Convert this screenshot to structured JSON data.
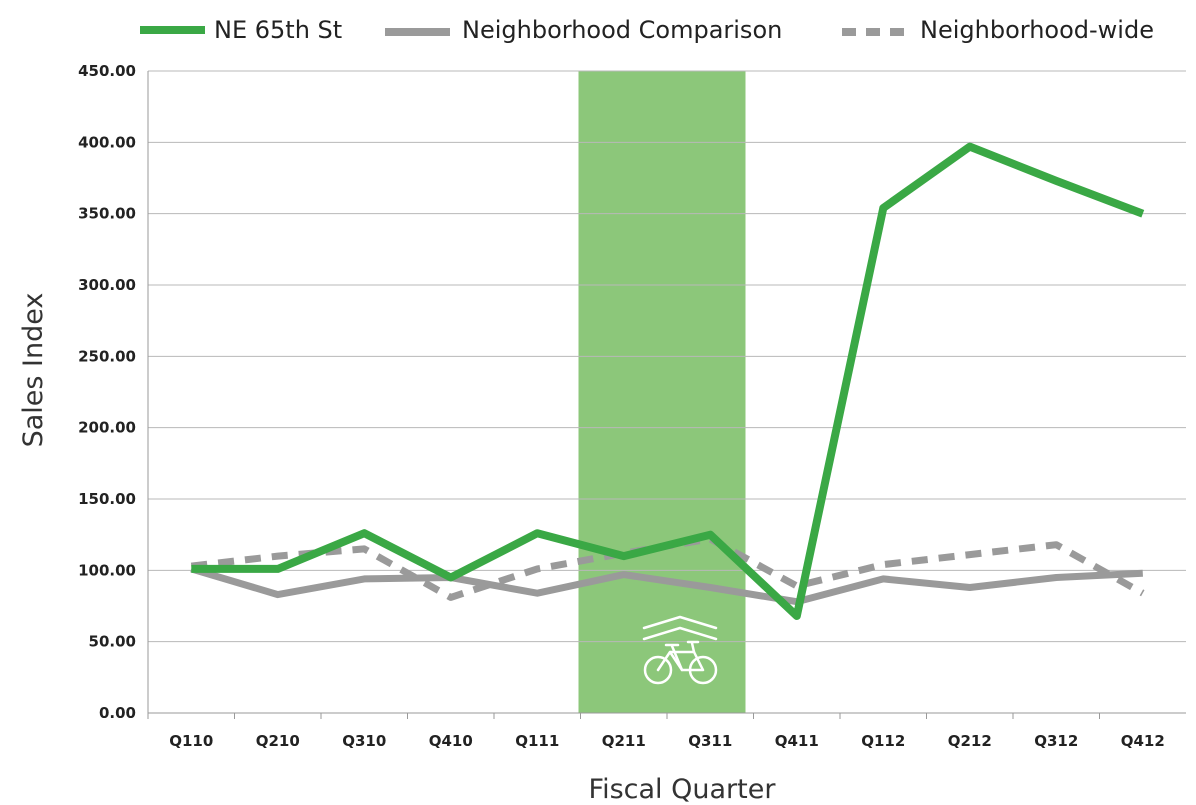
{
  "chart_data": {
    "type": "line",
    "title": "",
    "xlabel": "Fiscal Quarter",
    "ylabel": "Sales Index",
    "ylim": [
      0,
      450
    ],
    "yticks": [
      "0.00",
      "50.00",
      "100.00",
      "150.00",
      "200.00",
      "250.00",
      "300.00",
      "350.00",
      "400.00",
      "450.00"
    ],
    "categories": [
      "Q110",
      "Q210",
      "Q310",
      "Q410",
      "Q111",
      "Q211",
      "Q311",
      "Q411",
      "Q112",
      "Q212",
      "Q312",
      "Q412"
    ],
    "grid": true,
    "legend_position": "top",
    "highlight": {
      "from": "Q211",
      "to": "Q311",
      "color": "#8cc77a",
      "icon": "bike-lane-icon"
    },
    "series": [
      {
        "name": "NE 65th St",
        "color": "#3aa845",
        "style": "solid",
        "values": [
          101,
          101,
          126,
          95,
          126,
          110,
          125,
          68,
          354,
          397,
          373,
          350
        ]
      },
      {
        "name": "Neighborhood Comparison",
        "color": "#9a9a9a",
        "style": "solid",
        "values": [
          101,
          83,
          94,
          95,
          84,
          97,
          88,
          78,
          94,
          88,
          95,
          98
        ]
      },
      {
        "name": "Neighborhood-wide",
        "color": "#9a9a9a",
        "style": "dashed",
        "values": [
          103,
          110,
          115,
          81,
          101,
          112,
          122,
          89,
          104,
          111,
          118,
          84
        ]
      }
    ]
  }
}
